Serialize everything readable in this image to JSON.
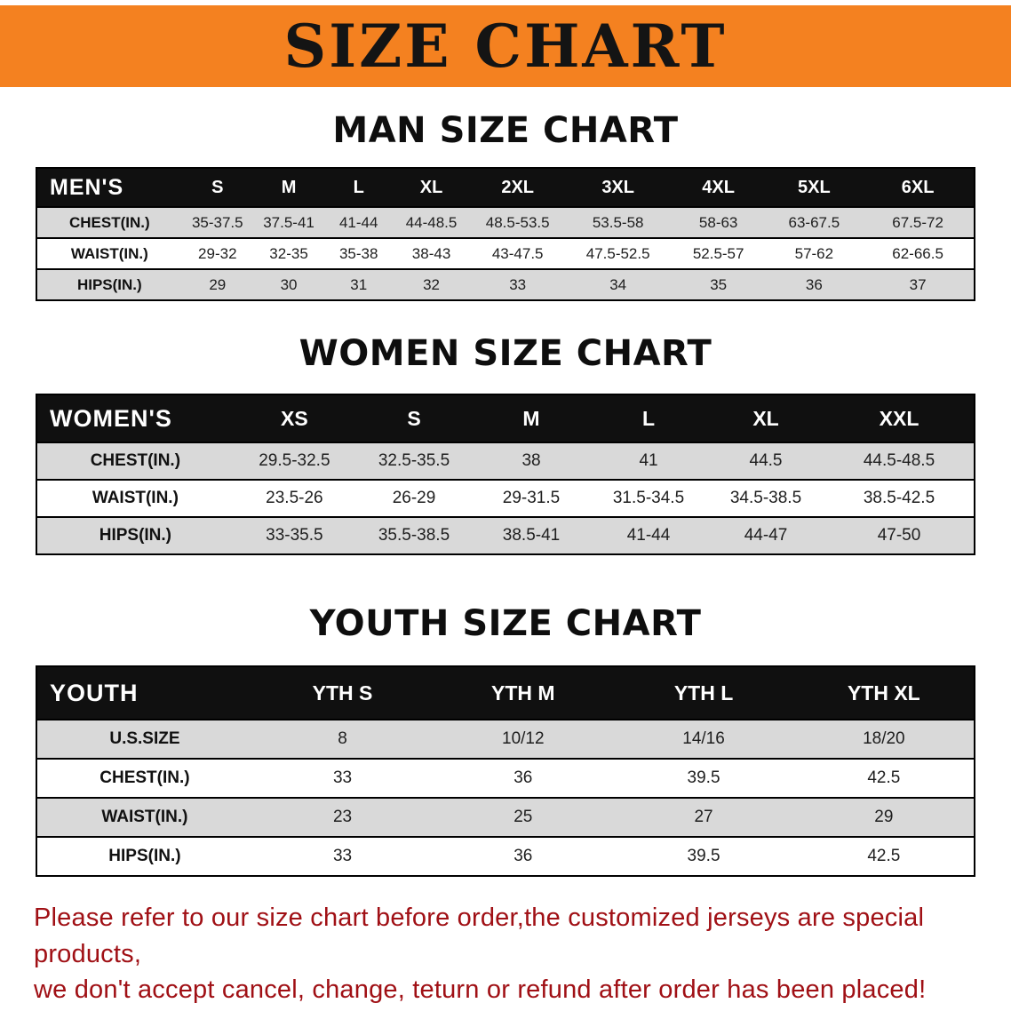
{
  "banner": {
    "title": "SIZE CHART"
  },
  "sections": [
    {
      "heading": "MAN SIZE CHART",
      "table": {
        "header": [
          "MEN'S",
          "S",
          "M",
          "L",
          "XL",
          "2XL",
          "3XL",
          "4XL",
          "5XL",
          "6XL"
        ],
        "rows": [
          [
            "CHEST(IN.)",
            "35-37.5",
            "37.5-41",
            "41-44",
            "44-48.5",
            "48.5-53.5",
            "53.5-58",
            "58-63",
            "63-67.5",
            "67.5-72"
          ],
          [
            "WAIST(IN.)",
            "29-32",
            "32-35",
            "35-38",
            "38-43",
            "43-47.5",
            "47.5-52.5",
            "52.5-57",
            "57-62",
            "62-66.5"
          ],
          [
            "HIPS(IN.)",
            "29",
            "30",
            "31",
            "32",
            "33",
            "34",
            "35",
            "36",
            "37"
          ]
        ]
      }
    },
    {
      "heading": "WOMEN SIZE CHART",
      "table": {
        "header": [
          "WOMEN'S",
          "XS",
          "S",
          "M",
          "L",
          "XL",
          "XXL"
        ],
        "rows": [
          [
            "CHEST(IN.)",
            "29.5-32.5",
            "32.5-35.5",
            "38",
            "41",
            "44.5",
            "44.5-48.5"
          ],
          [
            "WAIST(IN.)",
            "23.5-26",
            "26-29",
            "29-31.5",
            "31.5-34.5",
            "34.5-38.5",
            "38.5-42.5"
          ],
          [
            "HIPS(IN.)",
            "33-35.5",
            "35.5-38.5",
            "38.5-41",
            "41-44",
            "44-47",
            "47-50"
          ]
        ]
      }
    },
    {
      "heading": "YOUTH SIZE CHART",
      "table": {
        "header": [
          "YOUTH",
          "YTH S",
          "YTH M",
          "YTH L",
          "YTH XL"
        ],
        "rows": [
          [
            "U.S.SIZE",
            "8",
            "10/12",
            "14/16",
            "18/20"
          ],
          [
            "CHEST(IN.)",
            "33",
            "36",
            "39.5",
            "42.5"
          ],
          [
            "WAIST(IN.)",
            "23",
            "25",
            "27",
            "29"
          ],
          [
            "HIPS(IN.)",
            "33",
            "36",
            "39.5",
            "42.5"
          ]
        ]
      }
    }
  ],
  "footer": {
    "lines": [
      "Please refer to our size chart before order,the customized jerseys are special products,",
      "we don't accept cancel, change, teturn or refund after order has been placed!"
    ]
  },
  "colors": {
    "banner_bg": "#f48120",
    "header_bg": "#101010",
    "stripe_gray": "#d9d9d9",
    "note_red": "#a01015"
  }
}
